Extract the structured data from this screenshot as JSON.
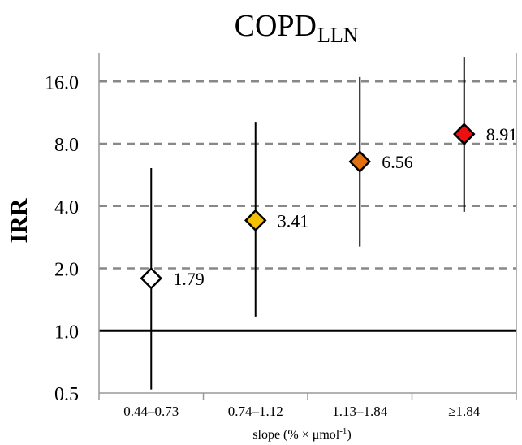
{
  "chart_data": {
    "type": "scatter",
    "title": "COPD",
    "title_subscript": "LLN",
    "ylabel": "IRR",
    "xlabel": "slope (% × μmol",
    "xlabel_superscript": "-1",
    "xlabel_suffix": ")",
    "y_scale": "log2",
    "ylim": [
      0.5,
      22.0
    ],
    "yticks": [
      0.5,
      1.0,
      2.0,
      4.0,
      8.0,
      16.0
    ],
    "ytick_labels": [
      "0.5",
      "1.0",
      "2.0",
      "4.0",
      "8.0",
      "16.0"
    ],
    "grid": "horizontal dashed",
    "reference_line": 1.0,
    "categories": [
      "0.44–0.73",
      "0.74–1.12",
      "1.13–1.84",
      "≥1.84"
    ],
    "points": [
      {
        "category": "0.44–0.73",
        "value": 1.79,
        "label": "1.79",
        "ci_low": 0.52,
        "ci_high": 6.1,
        "color": "#ffffff"
      },
      {
        "category": "0.74–1.12",
        "value": 3.41,
        "label": "3.41",
        "ci_low": 1.17,
        "ci_high": 10.2,
        "color": "#f5c000"
      },
      {
        "category": "1.13–1.84",
        "value": 6.56,
        "label": "6.56",
        "ci_low": 2.55,
        "ci_high": 16.8,
        "color": "#e07010"
      },
      {
        "category": "≥1.84",
        "value": 8.91,
        "label": "8.91",
        "ci_low": 3.75,
        "ci_high": 21.0,
        "color": "#ee1010"
      }
    ]
  }
}
